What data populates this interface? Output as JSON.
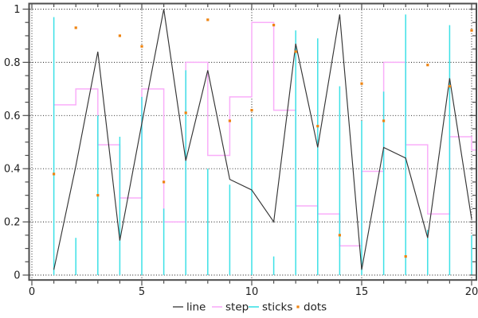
{
  "background": "#ffffff",
  "frame_color": "#4d4d4d",
  "grid_color": "#141414",
  "text_color": "#1f1f1f",
  "chart_data": {
    "type": "line",
    "title": "",
    "xlabel": "",
    "ylabel": "",
    "x": [
      1,
      2,
      3,
      4,
      5,
      6,
      7,
      8,
      9,
      10,
      11,
      12,
      13,
      14,
      15,
      16,
      17,
      18,
      19,
      20
    ],
    "series": [
      {
        "name": "line",
        "style": "line",
        "color": "#343434",
        "values": [
          0.02,
          0.41,
          0.84,
          0.13,
          0.57,
          1.0,
          0.43,
          0.77,
          0.36,
          0.32,
          0.2,
          0.87,
          0.48,
          0.98,
          0.02,
          0.48,
          0.44,
          0.14,
          0.74,
          0.21
        ]
      },
      {
        "name": "step",
        "style": "step",
        "color": "#f9aef9",
        "values": [
          0.64,
          0.7,
          0.49,
          0.29,
          0.7,
          0.2,
          0.8,
          0.45,
          0.67,
          0.95,
          0.62,
          0.26,
          0.23,
          0.11,
          0.39,
          0.8,
          0.49,
          0.23,
          0.52,
          0.47
        ]
      },
      {
        "name": "sticks",
        "style": "sticks",
        "color": "#3ce1e6",
        "values": [
          0.97,
          0.14,
          0.6,
          0.52,
          0.67,
          0.25,
          0.77,
          0.4,
          0.34,
          0.59,
          0.07,
          0.92,
          0.89,
          0.71,
          0.58,
          0.69,
          0.98,
          0.17,
          0.94,
          0.15
        ]
      },
      {
        "name": "dots",
        "style": "dots",
        "color": "#ee8411",
        "values": [
          0.38,
          0.93,
          0.3,
          0.9,
          0.86,
          0.35,
          0.61,
          0.96,
          0.58,
          0.62,
          0.94,
          0.84,
          0.56,
          0.15,
          0.72,
          0.58,
          0.07,
          0.79,
          0.71,
          0.92
        ]
      }
    ],
    "xlim": [
      0,
      20.25
    ],
    "ylim": [
      0,
      1
    ],
    "x_major_ticks": [
      0,
      5,
      10,
      15,
      20
    ],
    "x_tick_labels": [
      "0",
      "5",
      "10",
      "15",
      "20"
    ],
    "x_minor_step": 1,
    "y_major_ticks": [
      0,
      0.2,
      0.4,
      0.6,
      0.8,
      1
    ],
    "y_tick_labels": [
      "0",
      "0.2",
      "0.4",
      "0.6",
      "0.8",
      "1"
    ],
    "y_minor_step": 0.05,
    "grid": true,
    "legend_position": "below",
    "legend": [
      {
        "label": "line"
      },
      {
        "label": "step"
      },
      {
        "label": "sticks"
      },
      {
        "label": "dots"
      }
    ]
  }
}
